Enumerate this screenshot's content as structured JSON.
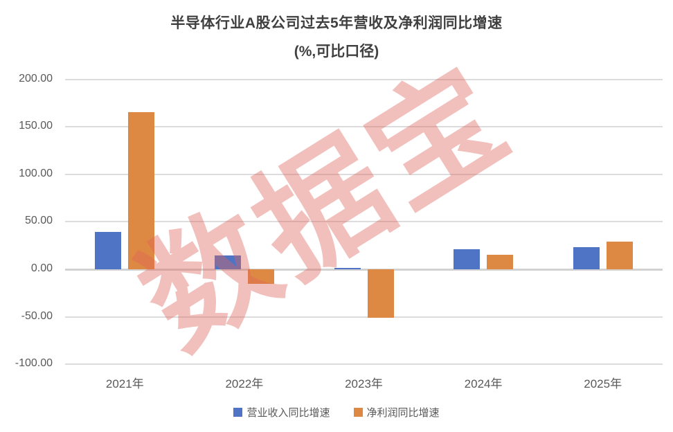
{
  "title": "半导体行业A股公司过去5年营收及净利润同比增速",
  "subtitle": "(%,可比口径)",
  "watermark_text": "数据宝",
  "colors": {
    "revenue_bar": "#4F74C6",
    "profit_bar": "#DE8943",
    "title_text": "#404040",
    "axis_text": "#595959",
    "gridline": "#dcdcdc",
    "watermark": "rgba(223,97,88,0.40)"
  },
  "chart_data": {
    "type": "bar",
    "title": "半导体行业A股公司过去5年营收及净利润同比增速",
    "subtitle": "(%,可比口径)",
    "categories": [
      "2021年",
      "2022年",
      "2023年",
      "2024年",
      "2025年"
    ],
    "series": [
      {
        "name": "营业收入同比增速",
        "color": "#4F74C6",
        "values": [
          39.5,
          14.8,
          1.5,
          21.0,
          23.0
        ]
      },
      {
        "name": "净利润同比增速",
        "color": "#DE8943",
        "values": [
          165.5,
          -15.5,
          -51.0,
          15.0,
          29.0
        ]
      }
    ],
    "ylabel": "",
    "xlabel": "",
    "ylim": [
      -100,
      200
    ],
    "yticks": [
      200,
      150,
      100,
      50,
      0,
      -50,
      -100
    ],
    "ytick_decimals": 2,
    "grid": true,
    "legend_position": "bottom"
  }
}
